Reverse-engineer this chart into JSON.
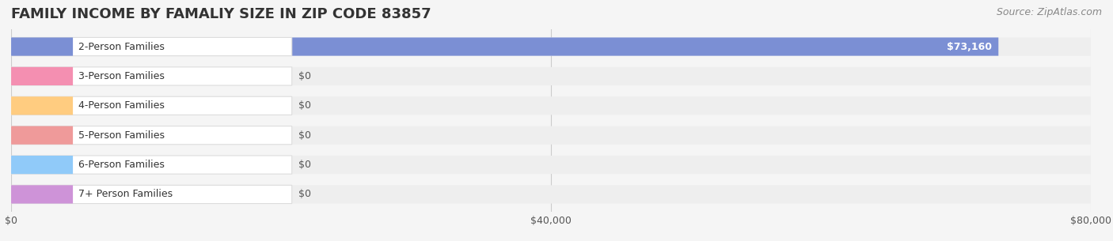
{
  "title": "FAMILY INCOME BY FAMALIY SIZE IN ZIP CODE 83857",
  "source": "Source: ZipAtlas.com",
  "categories": [
    "2-Person Families",
    "3-Person Families",
    "4-Person Families",
    "5-Person Families",
    "6-Person Families",
    "7+ Person Families"
  ],
  "values": [
    73160,
    0,
    0,
    0,
    0,
    0
  ],
  "bar_colors": [
    "#7b8fd4",
    "#f48fb1",
    "#ffcc80",
    "#ef9a9a",
    "#90caf9",
    "#ce93d8"
  ],
  "label_bg_colors": [
    "#e8eaf6",
    "#fce4ec",
    "#fff8e1",
    "#fce4ec",
    "#e3f2fd",
    "#f3e5f5"
  ],
  "value_labels": [
    "$73,160",
    "$0",
    "$0",
    "$0",
    "$0",
    "$0"
  ],
  "xlim": [
    0,
    80000
  ],
  "xticks": [
    0,
    40000,
    80000
  ],
  "xtick_labels": [
    "$0",
    "$40,000",
    "$80,000"
  ],
  "background_color": "#f5f5f5",
  "bar_bg_color": "#eeeeee",
  "title_fontsize": 13,
  "label_fontsize": 9,
  "value_fontsize": 9,
  "source_fontsize": 9
}
